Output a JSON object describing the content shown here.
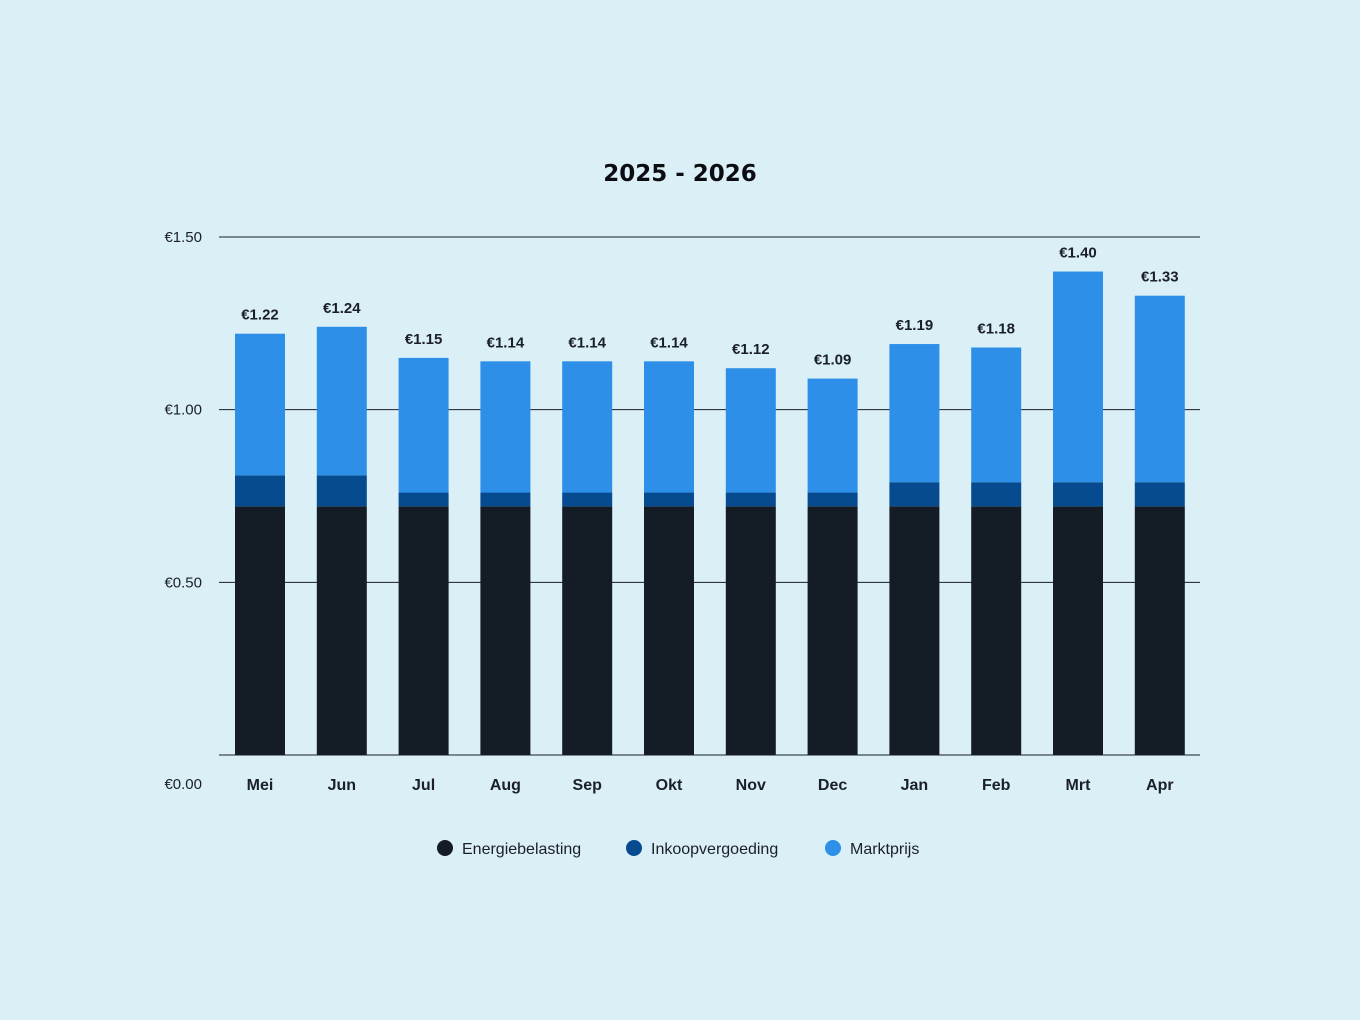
{
  "chart_data": {
    "type": "bar",
    "stacked": true,
    "title": "2025 - 2026",
    "categories": [
      "Mei",
      "Jun",
      "Jul",
      "Aug",
      "Sep",
      "Okt",
      "Nov",
      "Dec",
      "Jan",
      "Feb",
      "Mrt",
      "Apr"
    ],
    "series": [
      {
        "name": "Energiebelasting",
        "color": "#141c26",
        "values": [
          0.72,
          0.72,
          0.72,
          0.72,
          0.72,
          0.72,
          0.72,
          0.72,
          0.72,
          0.72,
          0.72,
          0.72
        ]
      },
      {
        "name": "Inkoopvergoeding",
        "color": "#064b8f",
        "values": [
          0.09,
          0.09,
          0.04,
          0.04,
          0.04,
          0.04,
          0.04,
          0.04,
          0.07,
          0.07,
          0.07,
          0.07
        ]
      },
      {
        "name": "Marktprijs",
        "color": "#2d8fe8",
        "values": [
          0.41,
          0.43,
          0.39,
          0.38,
          0.38,
          0.38,
          0.36,
          0.33,
          0.4,
          0.39,
          0.61,
          0.54
        ]
      }
    ],
    "totals": [
      "€1.22",
      "€1.24",
      "€1.15",
      "€1.14",
      "€1.14",
      "€1.14",
      "€1.12",
      "€1.09",
      "€1.19",
      "€1.18",
      "€1.40",
      "€1.33"
    ],
    "y_ticks": [
      {
        "value": 1.5,
        "label": "€1.50"
      },
      {
        "value": 1.0,
        "label": "€1.00"
      },
      {
        "value": 0.5,
        "label": "€0.50"
      },
      {
        "value": 0.0,
        "label": "€0.00"
      }
    ],
    "ylim": [
      0,
      1.5
    ],
    "grid": true,
    "legend_position": "bottom-center",
    "xlabel": "",
    "ylabel": ""
  }
}
